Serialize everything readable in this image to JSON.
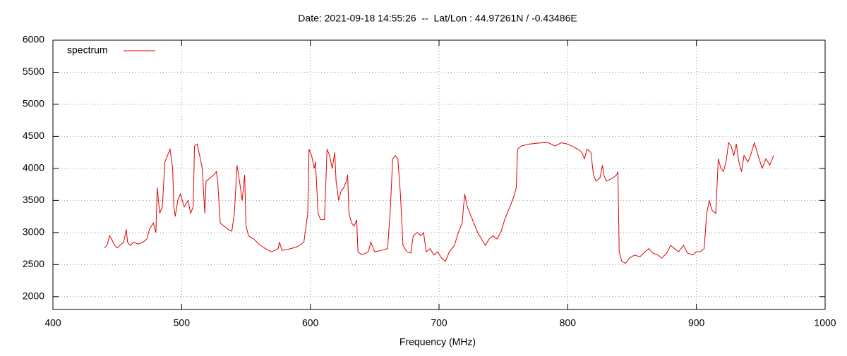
{
  "chart_data": {
    "type": "line",
    "title": "Date: 2021-09-18 14:55:26  --  Lat/Lon : 44.97261N / -0.43486E",
    "x_label": "Frequency (MHz)",
    "xlim": [
      400,
      1000
    ],
    "xticks": [
      400,
      500,
      600,
      700,
      800,
      900,
      1000
    ],
    "ylim": [
      1800,
      6000
    ],
    "yticks": [
      2000,
      2500,
      3000,
      3500,
      4000,
      4500,
      5000,
      5500,
      6000
    ],
    "grid": true,
    "legend": "top-left",
    "x": [
      440,
      442,
      444,
      446,
      448,
      450,
      452,
      455,
      457,
      458,
      460,
      463,
      466,
      470,
      473,
      475,
      478,
      480,
      481,
      483,
      485,
      487,
      489,
      491,
      493,
      494,
      495,
      497,
      499,
      502,
      505,
      507,
      509,
      510,
      512,
      514,
      516,
      518,
      519,
      522,
      525,
      527,
      528,
      530,
      533,
      536,
      539,
      541,
      543,
      545,
      547,
      549,
      550,
      552,
      556,
      560,
      565,
      570,
      575,
      576,
      578,
      585,
      590,
      595,
      598,
      599,
      601,
      603,
      604,
      606,
      608,
      611,
      613,
      615,
      617,
      619,
      620,
      622,
      624,
      626,
      628,
      629,
      630,
      632,
      634,
      636,
      637,
      640,
      645,
      647,
      650,
      655,
      660,
      662,
      664,
      666,
      668,
      670,
      672,
      675,
      678,
      680,
      683,
      686,
      688,
      690,
      693,
      696,
      699,
      702,
      705,
      708,
      712,
      715,
      718,
      719,
      720,
      722,
      726,
      730,
      733,
      736,
      739,
      742,
      745,
      748,
      751,
      755,
      758,
      760,
      761,
      764,
      770,
      775,
      780,
      785,
      790,
      795,
      800,
      805,
      808,
      811,
      813,
      815,
      818,
      820,
      822,
      825,
      827,
      828,
      830,
      835,
      838,
      839,
      840,
      842,
      845,
      848,
      852,
      856,
      860,
      863,
      866,
      870,
      873,
      877,
      880,
      883,
      886,
      890,
      893,
      897,
      900,
      903,
      906,
      908,
      910,
      912,
      915,
      917,
      919,
      921,
      923,
      925,
      927,
      929,
      931,
      933,
      935,
      937,
      940,
      942,
      945,
      948,
      951,
      954,
      957,
      960
    ],
    "series": [
      {
        "name": "spectrum",
        "color": "#e00000",
        "values": [
          2760,
          2800,
          2950,
          2880,
          2800,
          2760,
          2800,
          2850,
          3050,
          2850,
          2800,
          2850,
          2820,
          2850,
          2900,
          3050,
          3150,
          3000,
          3700,
          3300,
          3400,
          4100,
          4200,
          4300,
          4000,
          3400,
          3250,
          3500,
          3600,
          3400,
          3500,
          3300,
          3400,
          4350,
          4380,
          4200,
          4000,
          3300,
          3800,
          3850,
          3900,
          3950,
          3800,
          3150,
          3100,
          3050,
          3020,
          3300,
          4050,
          3800,
          3500,
          3900,
          3100,
          2950,
          2900,
          2820,
          2750,
          2700,
          2750,
          2850,
          2720,
          2750,
          2780,
          2850,
          3300,
          4300,
          4200,
          4000,
          4100,
          3300,
          3200,
          3200,
          4300,
          4200,
          4000,
          4250,
          3800,
          3500,
          3650,
          3700,
          3800,
          3900,
          3300,
          3150,
          3100,
          3200,
          2700,
          2650,
          2700,
          2850,
          2700,
          2720,
          2750,
          3300,
          4150,
          4200,
          4150,
          3600,
          2800,
          2700,
          2680,
          2950,
          3000,
          2950,
          3000,
          2700,
          2750,
          2650,
          2700,
          2600,
          2550,
          2700,
          2800,
          3000,
          3150,
          3400,
          3600,
          3400,
          3200,
          3000,
          2900,
          2800,
          2900,
          2950,
          2900,
          3000,
          3200,
          3400,
          3550,
          3700,
          4300,
          4350,
          4380,
          4390,
          4400,
          4400,
          4350,
          4400,
          4380,
          4330,
          4300,
          4250,
          4150,
          4300,
          4250,
          3900,
          3800,
          3850,
          4050,
          3900,
          3800,
          3850,
          3900,
          3950,
          2700,
          2550,
          2520,
          2600,
          2650,
          2620,
          2700,
          2750,
          2680,
          2650,
          2600,
          2680,
          2800,
          2750,
          2700,
          2800,
          2680,
          2650,
          2700,
          2700,
          2750,
          3300,
          3500,
          3350,
          3300,
          4150,
          4000,
          3950,
          4100,
          4400,
          4350,
          4200,
          4380,
          4100,
          3950,
          4200,
          4100,
          4200,
          4400,
          4200,
          4000,
          4150,
          4050,
          4200
        ]
      }
    ]
  }
}
